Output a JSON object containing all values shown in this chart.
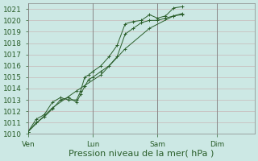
{
  "background_color": "#cce8e4",
  "grid_color": "#c8b8b8",
  "line_color": "#2a5e2a",
  "xlabel": "Pression niveau de la mer( hPa )",
  "ylim": [
    1010,
    1021.5
  ],
  "yticks": [
    1010,
    1011,
    1012,
    1013,
    1014,
    1015,
    1016,
    1017,
    1018,
    1019,
    1020,
    1021
  ],
  "xtick_labels": [
    "Ven",
    "Lun",
    "Sam",
    "Dim"
  ],
  "xtick_positions": [
    0,
    48,
    96,
    140
  ],
  "xlim": [
    0,
    168
  ],
  "tick_fontsize": 6.5,
  "xlabel_fontsize": 8,
  "line1_x": [
    0,
    6,
    12,
    18,
    24,
    30,
    36,
    39,
    42,
    45,
    48,
    54,
    60,
    66,
    72,
    78,
    84,
    90,
    96,
    102,
    108,
    114
  ],
  "line1_y": [
    1010.2,
    1011.3,
    1011.7,
    1012.8,
    1013.2,
    1013.0,
    1013.0,
    1013.8,
    1015.0,
    1015.2,
    1015.5,
    1016.0,
    1016.8,
    1017.8,
    1019.7,
    1019.9,
    1020.0,
    1020.5,
    1020.2,
    1020.4,
    1021.1,
    1021.2
  ],
  "line2_x": [
    0,
    6,
    12,
    18,
    24,
    30,
    36,
    39,
    42,
    45,
    48,
    54,
    60,
    66,
    72,
    78,
    84,
    90,
    96,
    102,
    108,
    114
  ],
  "line2_y": [
    1010.2,
    1011.0,
    1011.5,
    1012.2,
    1013.0,
    1013.2,
    1012.8,
    1013.5,
    1014.2,
    1014.8,
    1015.0,
    1015.5,
    1016.0,
    1016.8,
    1018.8,
    1019.3,
    1019.8,
    1020.0,
    1020.0,
    1020.2,
    1020.4,
    1020.5
  ],
  "line3_x": [
    0,
    18,
    36,
    54,
    72,
    90,
    108,
    114
  ],
  "line3_y": [
    1010.2,
    1012.3,
    1013.8,
    1015.2,
    1017.5,
    1019.3,
    1020.4,
    1020.6
  ],
  "vline_positions": [
    0,
    48,
    96,
    140
  ],
  "spine_color": "#888888"
}
